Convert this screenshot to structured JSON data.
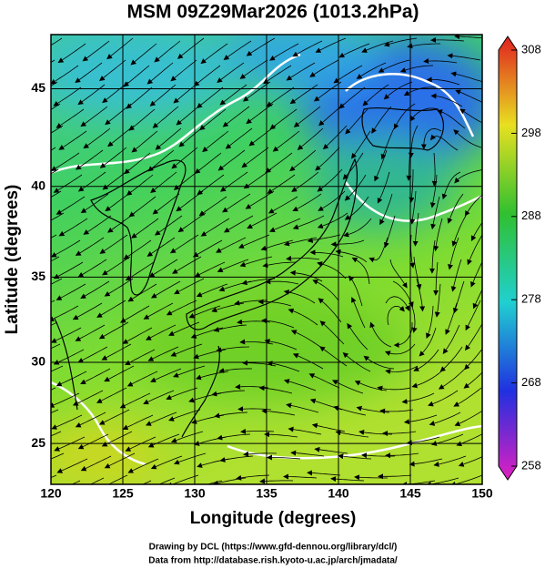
{
  "map": {
    "title": "MSM 09Z29Mar2026 (1013.2hPa)",
    "x_label": "Longitude (degrees)",
    "y_label": "Latitude  (degrees)",
    "xlim": [
      120,
      150
    ],
    "ylim": [
      22.4,
      47.6
    ],
    "xticks": [
      120,
      125,
      130,
      135,
      140,
      145,
      150
    ],
    "yticks": [
      25,
      30,
      35,
      40,
      45
    ],
    "colorbar": {
      "lim": [
        258,
        308
      ],
      "ticks": [
        258,
        268,
        278,
        288,
        298,
        308
      ]
    },
    "credits": [
      "Drawing by DCL (https://www.gfd-dennou.org/library/dcl/)",
      "Data from http://database.rish.kyoto-u.ac.jp/arch/jmadata/"
    ]
  }
}
